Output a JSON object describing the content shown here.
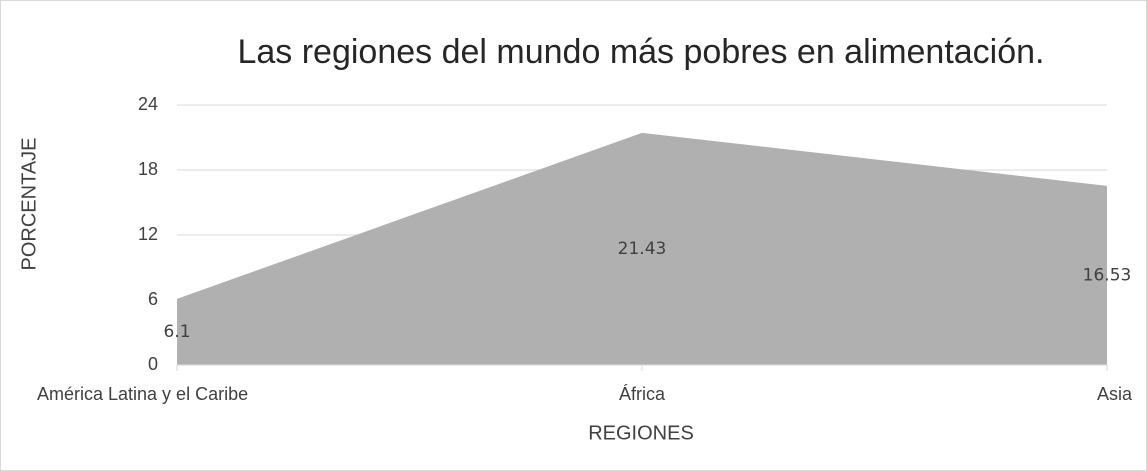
{
  "chart_data": {
    "type": "area",
    "title": "Las regiones del mundo más pobres en alimentación.",
    "categories": [
      "América Latina y el Caribe",
      "África",
      "Asia"
    ],
    "values": [
      6.1,
      21.43,
      16.53
    ],
    "color": "#b0b0b0",
    "ylim": [
      0,
      24
    ],
    "yticks": [
      0,
      6,
      12,
      18,
      24
    ],
    "grid": true,
    "x_label": "REGIONES",
    "y_label": "PORCENTAJE",
    "data_labels": true
  }
}
